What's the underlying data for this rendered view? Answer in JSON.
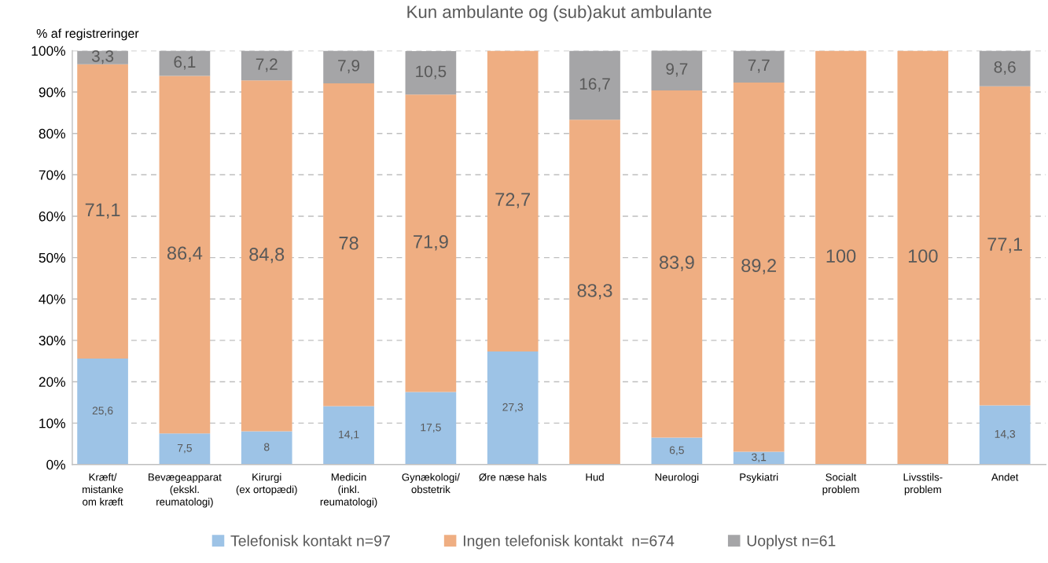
{
  "chart_data": {
    "type": "bar",
    "stacked": true,
    "title": "Kun ambulante og (sub)akut ambulante",
    "ylabel": "% af registreringer",
    "categories": [
      "Kræft/\nmistanke\nom kræft",
      "Bevægeapparat\n(ekskl.\nreumatologi)",
      "Kirurgi\n(ex ortopædi)",
      "Medicin\n(inkl.\nreumatologi)",
      "Gynækologi/\nobstetrik",
      "Øre næse hals",
      "Hud",
      "Neurologi",
      "Psykiatri",
      "Socialt\nproblem",
      "Livsstils-\nproblem",
      "Andet"
    ],
    "series": [
      {
        "name": "Telefonisk kontakt n=97",
        "color": "#9dc3e6",
        "values": [
          25.6,
          7.5,
          8,
          14.1,
          17.5,
          27.3,
          null,
          6.5,
          3.1,
          null,
          null,
          14.3
        ],
        "value_labels": [
          "25,6",
          "7,5",
          "8",
          "14,1",
          "17,5",
          "27,3",
          null,
          "6,5",
          "3,1",
          null,
          null,
          "14,3"
        ]
      },
      {
        "name": "Ingen telefonisk kontakt  n=674",
        "color": "#efae82",
        "values": [
          71.1,
          86.4,
          84.8,
          78,
          71.9,
          72.7,
          83.3,
          83.9,
          89.2,
          100,
          100,
          77.1
        ],
        "value_labels": [
          "71,1",
          "86,4",
          "84,8",
          "78",
          "71,9",
          "72,7",
          "83,3",
          "83,9",
          "89,2",
          "100",
          "100",
          "77,1"
        ]
      },
      {
        "name": "Uoplyst n=61",
        "color": "#a5a5a7",
        "values": [
          3.3,
          6.1,
          7.2,
          7.9,
          10.5,
          null,
          16.7,
          9.7,
          7.7,
          null,
          null,
          8.6
        ],
        "value_labels": [
          "3,3",
          "6,1",
          "7,2",
          "7,9",
          "10,5",
          null,
          "16,7",
          "9,7",
          "7,7",
          null,
          null,
          "8,6"
        ]
      }
    ],
    "ylim": [
      0,
      100
    ],
    "yticks": [
      {
        "value": 0,
        "label": "0%"
      },
      {
        "value": 10,
        "label": "10%"
      },
      {
        "value": 20,
        "label": "20%"
      },
      {
        "value": 30,
        "label": "30%"
      },
      {
        "value": 40,
        "label": "40%"
      },
      {
        "value": 50,
        "label": "50%"
      },
      {
        "value": 60,
        "label": "60%"
      },
      {
        "value": 70,
        "label": "70%"
      },
      {
        "value": 80,
        "label": "80%"
      },
      {
        "value": 90,
        "label": "90%"
      },
      {
        "value": 100,
        "label": "100%"
      }
    ],
    "grid": "y",
    "legend": "bottom"
  }
}
